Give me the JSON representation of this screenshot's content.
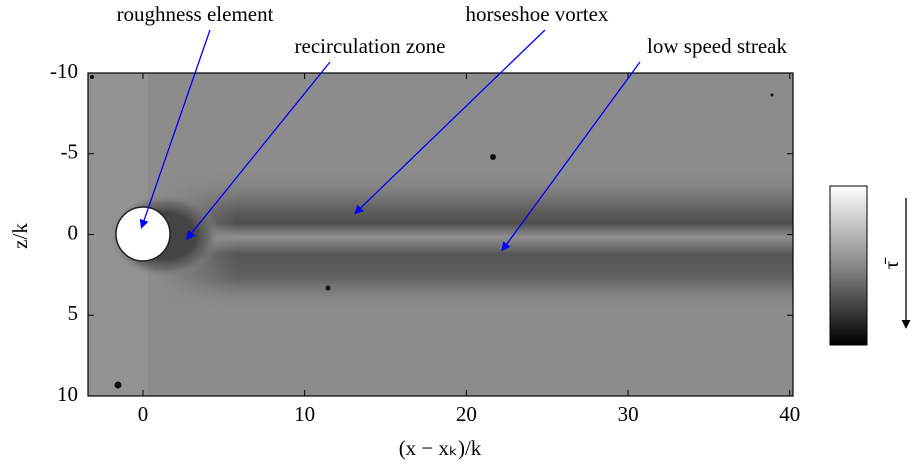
{
  "chart_data": {
    "type": "image",
    "xlabel": "(x − xₖ)/k",
    "ylabel": "z/k",
    "xlim": [
      -3.4,
      40.2
    ],
    "ylim": [
      -10,
      10
    ],
    "y_inverted": true,
    "xticks": [
      0,
      10,
      20,
      30,
      40
    ],
    "yticks": [
      -10,
      -5,
      0,
      5,
      10
    ],
    "colorbar_label": "τ̄",
    "annotations": [
      {
        "text": "roughness element",
        "xy": [
          -0.1,
          -0.4
        ],
        "color": "#0000ff"
      },
      {
        "text": "recirculation zone",
        "xy": [
          2.7,
          0.3
        ],
        "color": "#0000ff"
      },
      {
        "text": "horseshoe vortex",
        "xy": [
          13.1,
          -1.3
        ],
        "color": "#0000ff"
      },
      {
        "text": "low speed streak",
        "xy": [
          22.2,
          1.0
        ],
        "color": "#0000ff"
      }
    ]
  }
}
